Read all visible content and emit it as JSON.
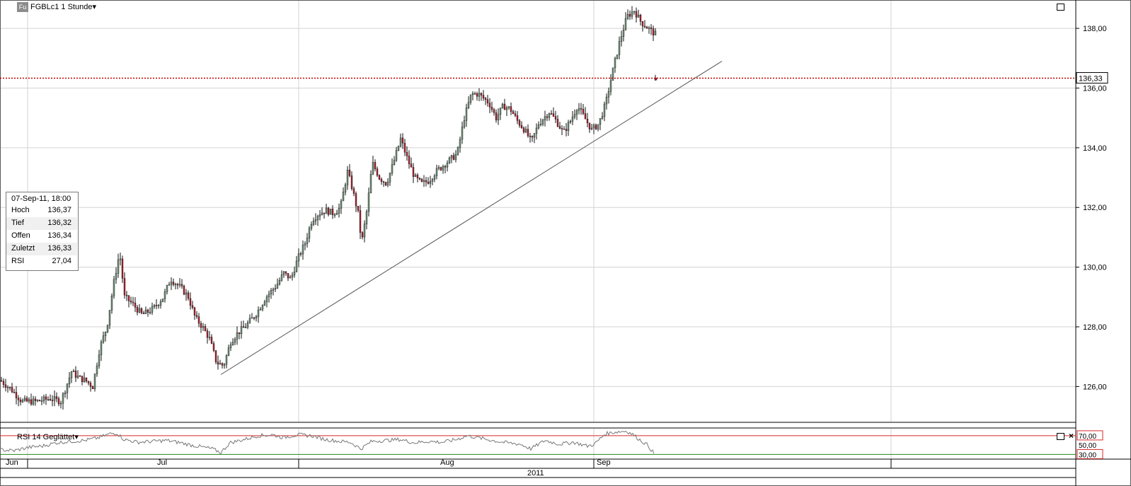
{
  "header": {
    "icon_text": "Fu",
    "title": "FGBLc1 1 Stunde▾"
  },
  "rsi_panel": {
    "title": "RSI 14 Geglättet▾",
    "level_high": "70,00",
    "level_mid": "50,00",
    "level_low": "30,00"
  },
  "info_box": {
    "date": "07-Sep-11, 18:00",
    "rows": [
      {
        "label": "Hoch",
        "value": "136,37"
      },
      {
        "label": "Tief",
        "value": "136,32"
      },
      {
        "label": "Offen",
        "value": "136,34"
      },
      {
        "label": "Zuletzt",
        "value": "136,33"
      },
      {
        "label": "RSI",
        "value": "27,04"
      }
    ]
  },
  "colors": {
    "up": "#6f8f78",
    "down": "#b01e2c",
    "grid": "#d3d3d3",
    "last_price_line": "#c00000",
    "rsi_upper": "#d62828",
    "rsi_lower": "#1e8a1e"
  },
  "chart_data": [
    {
      "type": "candlestick",
      "instrument": "FGBLc1",
      "interval": "1 Stunde",
      "x_labels": [
        "Jun",
        "Jul",
        "Aug",
        "Sep"
      ],
      "year_label": "2011",
      "y_ticks": [
        "126,00",
        "128,00",
        "130,00",
        "132,00",
        "134,00",
        "136,00",
        "138,00"
      ],
      "ylim": [
        124.8,
        138.95
      ],
      "last_price": "136,33",
      "grid": true,
      "approx_close_path": [
        [
          0,
          126.2
        ],
        [
          15,
          125.9
        ],
        [
          30,
          125.5
        ],
        [
          50,
          125.5
        ],
        [
          70,
          125.6
        ],
        [
          85,
          125.5
        ],
        [
          100,
          126.5
        ],
        [
          110,
          126.3
        ],
        [
          120,
          126.2
        ],
        [
          130,
          126.0
        ],
        [
          140,
          127.3
        ],
        [
          150,
          128.0
        ],
        [
          160,
          129.5
        ],
        [
          168,
          130.5
        ],
        [
          175,
          129.0
        ],
        [
          185,
          128.8
        ],
        [
          200,
          128.4
        ],
        [
          215,
          128.6
        ],
        [
          230,
          129.0
        ],
        [
          240,
          129.6
        ],
        [
          255,
          129.3
        ],
        [
          265,
          129.0
        ],
        [
          275,
          128.3
        ],
        [
          285,
          128.0
        ],
        [
          295,
          127.6
        ],
        [
          305,
          126.8
        ],
        [
          315,
          126.7
        ],
        [
          325,
          127.5
        ],
        [
          335,
          127.8
        ],
        [
          345,
          128.0
        ],
        [
          360,
          128.4
        ],
        [
          375,
          129.0
        ],
        [
          390,
          129.4
        ],
        [
          400,
          129.8
        ],
        [
          410,
          129.6
        ],
        [
          420,
          130.3
        ],
        [
          430,
          130.8
        ],
        [
          440,
          131.6
        ],
        [
          450,
          131.8
        ],
        [
          460,
          131.9
        ],
        [
          470,
          131.8
        ],
        [
          480,
          132.0
        ],
        [
          490,
          133.2
        ],
        [
          495,
          132.8
        ],
        [
          505,
          131.8
        ],
        [
          510,
          130.8
        ],
        [
          518,
          132.0
        ],
        [
          525,
          133.5
        ],
        [
          535,
          133.0
        ],
        [
          545,
          132.8
        ],
        [
          555,
          133.5
        ],
        [
          565,
          134.3
        ],
        [
          575,
          133.6
        ],
        [
          585,
          133.0
        ],
        [
          595,
          132.8
        ],
        [
          605,
          132.9
        ],
        [
          615,
          133.2
        ],
        [
          625,
          133.4
        ],
        [
          635,
          133.6
        ],
        [
          645,
          133.8
        ],
        [
          655,
          135.0
        ],
        [
          665,
          135.8
        ],
        [
          675,
          135.8
        ],
        [
          690,
          135.5
        ],
        [
          700,
          135.0
        ],
        [
          710,
          135.4
        ],
        [
          720,
          135.3
        ],
        [
          730,
          134.9
        ],
        [
          740,
          134.6
        ],
        [
          750,
          134.2
        ],
        [
          760,
          134.8
        ],
        [
          775,
          135.2
        ],
        [
          785,
          134.9
        ],
        [
          795,
          134.5
        ],
        [
          805,
          134.9
        ],
        [
          815,
          135.4
        ],
        [
          825,
          135.0
        ],
        [
          835,
          134.6
        ],
        [
          845,
          134.8
        ],
        [
          855,
          135.5
        ],
        [
          865,
          136.6
        ],
        [
          875,
          137.6
        ],
        [
          885,
          138.4
        ],
        [
          895,
          138.6
        ],
        [
          905,
          138.2
        ],
        [
          915,
          138.0
        ],
        [
          925,
          137.8
        ]
      ],
      "last_candle": {
        "x": 926,
        "open": 136.34,
        "high": 136.37,
        "low": 136.32,
        "close": 136.33
      },
      "trendline": {
        "from": [
          312,
          126.4
        ],
        "to": [
          1020,
          136.9
        ]
      }
    },
    {
      "type": "line",
      "name": "RSI 14 Geglättet",
      "levels": [
        70,
        50,
        30
      ],
      "ylim": [
        20,
        85
      ],
      "series": [
        {
          "name": "RSI",
          "approx_points": [
            [
              0,
              40
            ],
            [
              20,
              38
            ],
            [
              40,
              45
            ],
            [
              60,
              48
            ],
            [
              80,
              55
            ],
            [
              100,
              58
            ],
            [
              120,
              60
            ],
            [
              140,
              66
            ],
            [
              155,
              74
            ],
            [
              165,
              76
            ],
            [
              175,
              62
            ],
            [
              195,
              56
            ],
            [
              215,
              58
            ],
            [
              235,
              60
            ],
            [
              255,
              55
            ],
            [
              270,
              50
            ],
            [
              285,
              46
            ],
            [
              300,
              42
            ],
            [
              312,
              34
            ],
            [
              325,
              55
            ],
            [
              345,
              62
            ],
            [
              365,
              70
            ],
            [
              385,
              72
            ],
            [
              400,
              66
            ],
            [
              420,
              72
            ],
            [
              440,
              70
            ],
            [
              460,
              62
            ],
            [
              480,
              58
            ],
            [
              495,
              56
            ],
            [
              510,
              42
            ],
            [
              525,
              58
            ],
            [
              545,
              60
            ],
            [
              565,
              62
            ],
            [
              585,
              55
            ],
            [
              605,
              58
            ],
            [
              625,
              56
            ],
            [
              645,
              62
            ],
            [
              660,
              70
            ],
            [
              675,
              66
            ],
            [
              695,
              60
            ],
            [
              715,
              55
            ],
            [
              735,
              52
            ],
            [
              750,
              42
            ],
            [
              770,
              60
            ],
            [
              790,
              52
            ],
            [
              810,
              56
            ],
            [
              830,
              48
            ],
            [
              840,
              52
            ],
            [
              855,
              74
            ],
            [
              870,
              78
            ],
            [
              885,
              80
            ],
            [
              895,
              72
            ],
            [
              905,
              60
            ],
            [
              915,
              50
            ],
            [
              925,
              30
            ]
          ]
        }
      ]
    }
  ]
}
